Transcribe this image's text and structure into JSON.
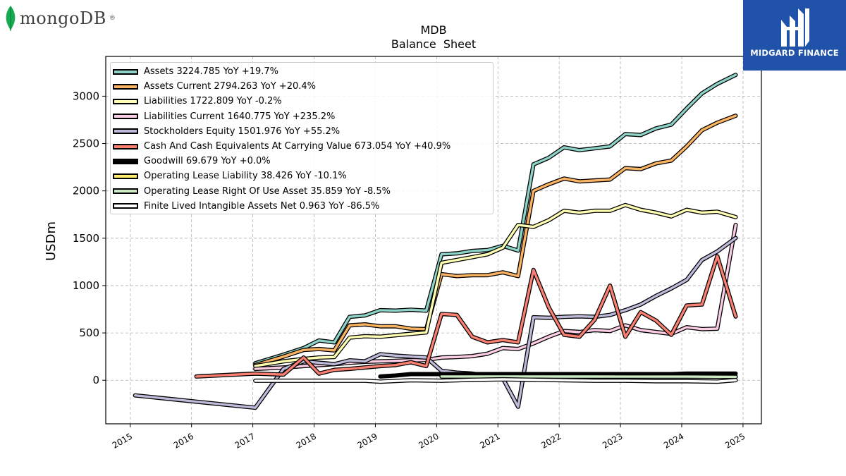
{
  "brand": {
    "left_logo_text": "mongoDB",
    "left_logo_mark": "®",
    "right_logo_text": "MIDGARD FINANCE",
    "left_logo_icon": "leaf-icon",
    "right_logo_icon": "midgard-monogram-icon"
  },
  "chart_data": {
    "type": "line",
    "title": "MDB",
    "subtitle": "Balance  Sheet",
    "xlabel": "",
    "ylabel": "USDm",
    "xlim": [
      2014.6,
      2025.3
    ],
    "ylim": [
      -460,
      3420
    ],
    "x_ticks": [
      2015,
      2016,
      2017,
      2018,
      2019,
      2020,
      2021,
      2022,
      2023,
      2024,
      2025
    ],
    "y_ticks": [
      0,
      500,
      1000,
      1500,
      2000,
      2500,
      3000
    ],
    "grid": true,
    "legend_position": "top-left",
    "series": [
      {
        "name": "Assets",
        "legend": "Assets  3224.785 YoY +19.7%",
        "color": "#8dd3c7",
        "points": [
          [
            2017.04,
            180
          ],
          [
            2017.5,
            270
          ],
          [
            2017.83,
            340
          ],
          [
            2018.08,
            420
          ],
          [
            2018.33,
            400
          ],
          [
            2018.58,
            670
          ],
          [
            2018.83,
            685
          ],
          [
            2019.08,
            740
          ],
          [
            2019.33,
            735
          ],
          [
            2019.58,
            745
          ],
          [
            2019.83,
            735
          ],
          [
            2020.08,
            1330
          ],
          [
            2020.33,
            1340
          ],
          [
            2020.58,
            1365
          ],
          [
            2020.83,
            1375
          ],
          [
            2021.08,
            1420
          ],
          [
            2021.33,
            1370
          ],
          [
            2021.58,
            2280
          ],
          [
            2021.83,
            2350
          ],
          [
            2022.08,
            2460
          ],
          [
            2022.33,
            2430
          ],
          [
            2022.58,
            2450
          ],
          [
            2022.83,
            2470
          ],
          [
            2023.08,
            2600
          ],
          [
            2023.33,
            2590
          ],
          [
            2023.58,
            2660
          ],
          [
            2023.83,
            2700
          ],
          [
            2024.08,
            2870
          ],
          [
            2024.33,
            3030
          ],
          [
            2024.58,
            3130
          ],
          [
            2024.88,
            3225
          ]
        ]
      },
      {
        "name": "Assets Current",
        "legend": "Assets Current  2794.263 YoY +20.4%",
        "color": "#fdb462",
        "points": [
          [
            2017.04,
            160
          ],
          [
            2017.5,
            250
          ],
          [
            2017.83,
            320
          ],
          [
            2018.08,
            330
          ],
          [
            2018.33,
            315
          ],
          [
            2018.58,
            580
          ],
          [
            2018.83,
            590
          ],
          [
            2019.08,
            570
          ],
          [
            2019.33,
            570
          ],
          [
            2019.58,
            545
          ],
          [
            2019.83,
            540
          ],
          [
            2020.08,
            1120
          ],
          [
            2020.33,
            1100
          ],
          [
            2020.58,
            1110
          ],
          [
            2020.83,
            1110
          ],
          [
            2021.08,
            1140
          ],
          [
            2021.33,
            1100
          ],
          [
            2021.58,
            2000
          ],
          [
            2021.83,
            2070
          ],
          [
            2022.08,
            2130
          ],
          [
            2022.33,
            2100
          ],
          [
            2022.58,
            2110
          ],
          [
            2022.83,
            2120
          ],
          [
            2023.08,
            2240
          ],
          [
            2023.33,
            2230
          ],
          [
            2023.58,
            2290
          ],
          [
            2023.83,
            2320
          ],
          [
            2024.08,
            2470
          ],
          [
            2024.33,
            2640
          ],
          [
            2024.58,
            2720
          ],
          [
            2024.88,
            2794
          ]
        ]
      },
      {
        "name": "Liabilities",
        "legend": "Liabilities  1722.809 YoY -0.2%",
        "color": "#ffffb3",
        "points": [
          [
            2017.04,
            150
          ],
          [
            2017.5,
            200
          ],
          [
            2017.83,
            225
          ],
          [
            2018.08,
            240
          ],
          [
            2018.33,
            245
          ],
          [
            2018.58,
            450
          ],
          [
            2018.83,
            465
          ],
          [
            2019.08,
            460
          ],
          [
            2019.33,
            475
          ],
          [
            2019.58,
            490
          ],
          [
            2019.83,
            505
          ],
          [
            2020.08,
            1240
          ],
          [
            2020.33,
            1270
          ],
          [
            2020.58,
            1300
          ],
          [
            2020.83,
            1330
          ],
          [
            2021.08,
            1400
          ],
          [
            2021.33,
            1640
          ],
          [
            2021.58,
            1620
          ],
          [
            2021.83,
            1690
          ],
          [
            2022.08,
            1790
          ],
          [
            2022.33,
            1770
          ],
          [
            2022.58,
            1790
          ],
          [
            2022.83,
            1790
          ],
          [
            2023.08,
            1850
          ],
          [
            2023.33,
            1800
          ],
          [
            2023.58,
            1770
          ],
          [
            2023.83,
            1730
          ],
          [
            2024.08,
            1800
          ],
          [
            2024.33,
            1770
          ],
          [
            2024.58,
            1780
          ],
          [
            2024.88,
            1723
          ]
        ]
      },
      {
        "name": "Liabilities Current",
        "legend": "Liabilities Current  1640.775 YoY +235.2%",
        "color": "#fccde5",
        "points": [
          [
            2017.04,
            120
          ],
          [
            2017.5,
            135
          ],
          [
            2017.83,
            150
          ],
          [
            2018.08,
            160
          ],
          [
            2018.33,
            170
          ],
          [
            2018.58,
            185
          ],
          [
            2018.83,
            195
          ],
          [
            2019.08,
            200
          ],
          [
            2019.33,
            205
          ],
          [
            2019.58,
            210
          ],
          [
            2019.83,
            215
          ],
          [
            2020.08,
            240
          ],
          [
            2020.33,
            245
          ],
          [
            2020.58,
            255
          ],
          [
            2020.83,
            280
          ],
          [
            2021.08,
            340
          ],
          [
            2021.33,
            330
          ],
          [
            2021.58,
            390
          ],
          [
            2021.83,
            460
          ],
          [
            2022.08,
            520
          ],
          [
            2022.33,
            510
          ],
          [
            2022.58,
            530
          ],
          [
            2022.83,
            520
          ],
          [
            2023.08,
            580
          ],
          [
            2023.33,
            530
          ],
          [
            2023.58,
            510
          ],
          [
            2023.83,
            490
          ],
          [
            2024.08,
            560
          ],
          [
            2024.33,
            540
          ],
          [
            2024.58,
            545
          ],
          [
            2024.88,
            1641
          ]
        ]
      },
      {
        "name": "Stockholders Equity",
        "legend": "Stockholders Equity  1501.976 YoY +55.2%",
        "color": "#bebada",
        "points": [
          [
            2015.08,
            -160
          ],
          [
            2017.04,
            -290
          ],
          [
            2017.5,
            120
          ],
          [
            2017.83,
            200
          ],
          [
            2018.08,
            185
          ],
          [
            2018.33,
            170
          ],
          [
            2018.58,
            210
          ],
          [
            2018.83,
            200
          ],
          [
            2019.08,
            275
          ],
          [
            2019.33,
            260
          ],
          [
            2019.58,
            250
          ],
          [
            2019.83,
            240
          ],
          [
            2020.08,
            100
          ],
          [
            2020.33,
            80
          ],
          [
            2020.58,
            70
          ],
          [
            2020.83,
            50
          ],
          [
            2021.08,
            20
          ],
          [
            2021.33,
            -280
          ],
          [
            2021.58,
            665
          ],
          [
            2021.83,
            660
          ],
          [
            2022.08,
            670
          ],
          [
            2022.33,
            675
          ],
          [
            2022.58,
            670
          ],
          [
            2022.83,
            690
          ],
          [
            2023.08,
            740
          ],
          [
            2023.33,
            800
          ],
          [
            2023.58,
            890
          ],
          [
            2023.83,
            970
          ],
          [
            2024.08,
            1060
          ],
          [
            2024.33,
            1270
          ],
          [
            2024.58,
            1360
          ],
          [
            2024.88,
            1502
          ]
        ]
      },
      {
        "name": "Cash And Cash Equivalents At Carrying Value",
        "legend": "Cash And Cash Equivalents At Carrying Value  673.054 YoY +40.9%",
        "color": "#fb8072",
        "points": [
          [
            2016.08,
            40
          ],
          [
            2017.04,
            70
          ],
          [
            2017.5,
            60
          ],
          [
            2017.83,
            240
          ],
          [
            2018.08,
            70
          ],
          [
            2018.33,
            110
          ],
          [
            2018.58,
            120
          ],
          [
            2018.83,
            135
          ],
          [
            2019.08,
            150
          ],
          [
            2019.33,
            160
          ],
          [
            2019.58,
            190
          ],
          [
            2019.83,
            150
          ],
          [
            2020.08,
            700
          ],
          [
            2020.33,
            690
          ],
          [
            2020.58,
            460
          ],
          [
            2020.83,
            400
          ],
          [
            2021.08,
            425
          ],
          [
            2021.33,
            400
          ],
          [
            2021.58,
            1165
          ],
          [
            2021.83,
            770
          ],
          [
            2022.08,
            480
          ],
          [
            2022.33,
            460
          ],
          [
            2022.58,
            640
          ],
          [
            2022.83,
            1000
          ],
          [
            2023.08,
            460
          ],
          [
            2023.33,
            720
          ],
          [
            2023.58,
            630
          ],
          [
            2023.83,
            480
          ],
          [
            2024.08,
            790
          ],
          [
            2024.33,
            800
          ],
          [
            2024.58,
            1310
          ],
          [
            2024.88,
            673
          ]
        ]
      },
      {
        "name": "Goodwill",
        "legend": "Goodwill  69.679 YoY +0.0%",
        "color": "#000000",
        "points": [
          [
            2019.08,
            40
          ],
          [
            2019.33,
            50
          ],
          [
            2019.58,
            65
          ],
          [
            2019.83,
            65
          ],
          [
            2020.08,
            65
          ],
          [
            2020.58,
            65
          ],
          [
            2021.08,
            65
          ],
          [
            2021.58,
            65
          ],
          [
            2022.08,
            65
          ],
          [
            2022.58,
            65
          ],
          [
            2023.08,
            65
          ],
          [
            2023.58,
            65
          ],
          [
            2023.83,
            65
          ],
          [
            2024.08,
            70
          ],
          [
            2024.58,
            70
          ],
          [
            2024.88,
            70
          ]
        ]
      },
      {
        "name": "Operating Lease Liability",
        "legend": "Operating Lease Liability  38.426 YoY -10.1%",
        "color": "#ffed6f",
        "points": [
          [
            2020.08,
            45
          ],
          [
            2020.58,
            45
          ],
          [
            2021.08,
            44
          ],
          [
            2021.58,
            44
          ],
          [
            2022.08,
            44
          ],
          [
            2022.58,
            43
          ],
          [
            2023.08,
            43
          ],
          [
            2023.58,
            42
          ],
          [
            2024.08,
            42
          ],
          [
            2024.58,
            40
          ],
          [
            2024.88,
            38
          ]
        ]
      },
      {
        "name": "Operating Lease Right Of Use Asset",
        "legend": "Operating Lease Right Of Use Asset  35.859 YoY -8.5%",
        "color": "#ccebc5",
        "points": [
          [
            2020.08,
            40
          ],
          [
            2020.58,
            40
          ],
          [
            2021.08,
            40
          ],
          [
            2021.58,
            40
          ],
          [
            2022.08,
            39
          ],
          [
            2022.58,
            39
          ],
          [
            2023.08,
            38
          ],
          [
            2023.58,
            38
          ],
          [
            2024.08,
            38
          ],
          [
            2024.58,
            37
          ],
          [
            2024.88,
            36
          ]
        ]
      },
      {
        "name": "Finite Lived Intangible Assets Net",
        "legend": "Finite Lived Intangible Assets Net  0.963 YoY -86.5%",
        "color": "#ffffff",
        "points": [
          [
            2017.04,
            -5
          ],
          [
            2018.08,
            -5
          ],
          [
            2018.83,
            -5
          ],
          [
            2019.08,
            -15
          ],
          [
            2019.58,
            0
          ],
          [
            2020.08,
            -5
          ],
          [
            2020.58,
            5
          ],
          [
            2021.08,
            10
          ],
          [
            2021.58,
            5
          ],
          [
            2022.08,
            0
          ],
          [
            2022.58,
            -5
          ],
          [
            2023.08,
            -5
          ],
          [
            2023.58,
            -10
          ],
          [
            2024.08,
            -10
          ],
          [
            2024.58,
            -15
          ],
          [
            2024.88,
            1
          ]
        ]
      }
    ]
  }
}
